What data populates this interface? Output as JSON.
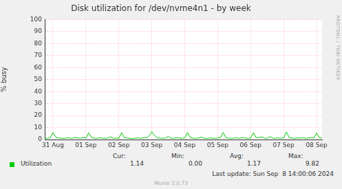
{
  "chart_data": {
    "type": "line",
    "title": "Disk utilization for /dev/nvme4n1 - by week",
    "y_label": "% busy",
    "categories": [
      null,
      null,
      null,
      "31 Aug",
      null,
      null,
      null,
      null,
      null,
      null,
      null,
      null,
      null,
      null,
      null,
      "01 Sep",
      null,
      null,
      null,
      null,
      null,
      null,
      null,
      null,
      null,
      null,
      null,
      "02 Sep",
      null,
      null,
      null,
      null,
      null,
      null,
      null,
      null,
      null,
      null,
      null,
      "03 Sep",
      null,
      null,
      null,
      null,
      null,
      null,
      null,
      null,
      null,
      null,
      null,
      "04 Sep",
      null,
      null,
      null,
      null,
      null,
      null,
      null,
      null,
      null,
      null,
      null,
      "05 Sep",
      null,
      null,
      null,
      null,
      null,
      null,
      null,
      null,
      null,
      null,
      null,
      "06 Sep",
      null,
      null,
      null,
      null,
      null,
      null,
      null,
      null,
      null,
      null,
      null,
      "07 Sep",
      null,
      null,
      null,
      null,
      null,
      null,
      null,
      null,
      null,
      null,
      null,
      "08 Sep",
      null,
      null
    ],
    "series": [
      {
        "name": "Utilization",
        "color": "#00cc00",
        "values": [
          1.2,
          1.0,
          1.4,
          5.8,
          2.1,
          1.3,
          1.1,
          0.9,
          1.5,
          1.2,
          1.0,
          1.8,
          1.3,
          1.1,
          1.6,
          1.2,
          5.6,
          1.8,
          1.1,
          1.0,
          1.4,
          1.2,
          0.9,
          1.3,
          2.2,
          1.0,
          1.2,
          1.1,
          5.7,
          1.5,
          1.2,
          1.0,
          0.8,
          1.1,
          1.4,
          1.0,
          1.7,
          1.2,
          2.9,
          6.6,
          3.4,
          1.4,
          1.2,
          1.0,
          1.3,
          2.6,
          1.1,
          1.0,
          1.5,
          1.2,
          1.1,
          1.3,
          5.9,
          1.6,
          1.1,
          1.0,
          1.2,
          2.0,
          1.1,
          0.9,
          1.3,
          1.1,
          1.0,
          1.2,
          1.4,
          6.0,
          1.5,
          1.1,
          1.0,
          1.2,
          1.4,
          1.0,
          1.8,
          1.1,
          1.0,
          1.3,
          5.5,
          1.4,
          1.6,
          2.3,
          1.1,
          1.0,
          2.4,
          1.2,
          1.0,
          1.3,
          1.1,
          1.2,
          6.3,
          1.7,
          1.2,
          1.0,
          1.3,
          1.1,
          1.5,
          1.0,
          1.2,
          1.8,
          1.1,
          5.4,
          1.6,
          1.14
        ],
        "summary": [
          {
            "name": "Cur:",
            "label": "1.14"
          },
          {
            "name": "Min:",
            "label": "0.00"
          },
          {
            "name": "Avg:",
            "label": "1.17"
          },
          {
            "name": "Max:",
            "label": "9.82"
          }
        ]
      }
    ],
    "ylim": [
      0,
      100
    ],
    "yticks": [
      0,
      10,
      20,
      30,
      40,
      50,
      60,
      70,
      80,
      90,
      100
    ],
    "grid": true,
    "legend": "bottom-left",
    "last_update": "Last update: Sun Sep  8 14:00:06 2024",
    "footer": "Munin 2.0.73",
    "side_label": "RRDTOOL / TOBI OETIKER"
  }
}
